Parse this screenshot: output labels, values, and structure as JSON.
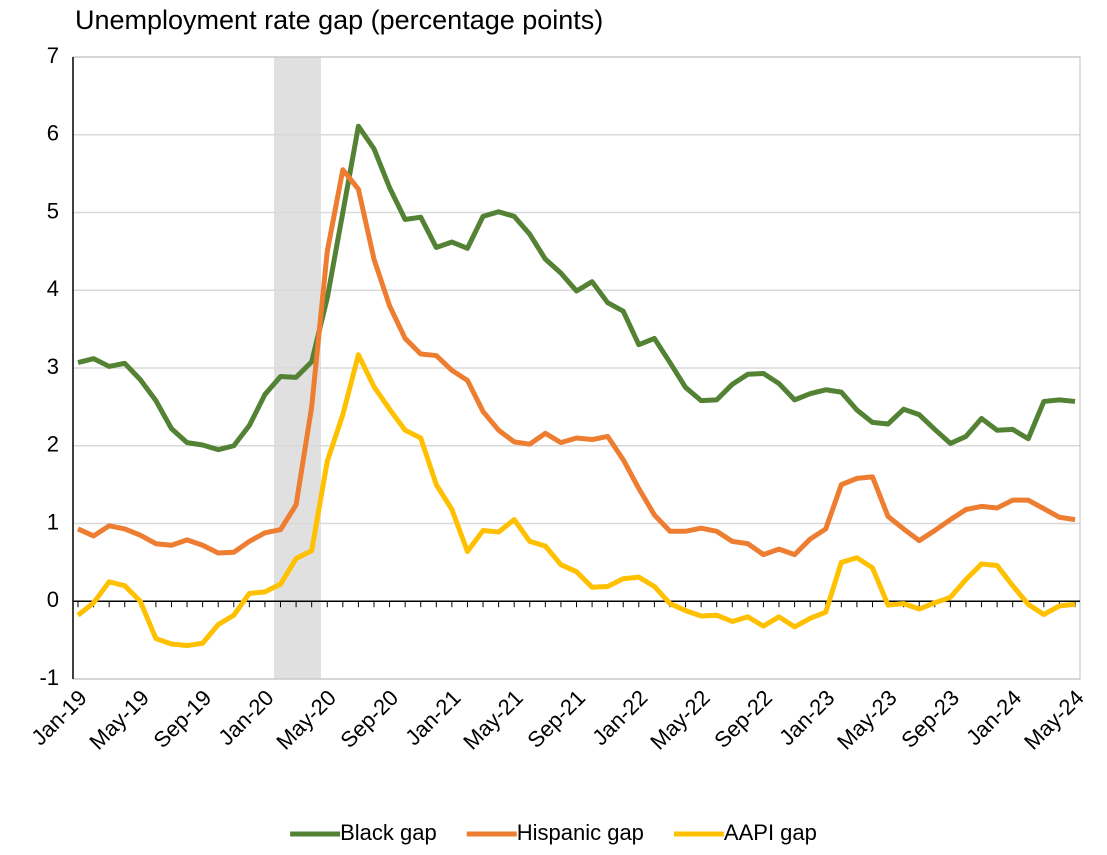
{
  "chart_data": {
    "type": "line",
    "title": "Unemployment rate gap (percentage points)",
    "categories": [
      "Jan-19",
      null,
      null,
      null,
      "May-19",
      null,
      null,
      null,
      "Sep-19",
      null,
      null,
      null,
      "Jan-20",
      null,
      null,
      null,
      "May-20",
      null,
      null,
      null,
      "Sep-20",
      null,
      null,
      null,
      "Jan-21",
      null,
      null,
      null,
      "May-21",
      null,
      null,
      null,
      "Sep-21",
      null,
      null,
      null,
      "Jan-22",
      null,
      null,
      null,
      "May-22",
      null,
      null,
      null,
      "Sep-22",
      null,
      null,
      null,
      "Jan-23",
      null,
      null,
      null,
      "May-23",
      null,
      null,
      null,
      "Sep-23",
      null,
      null,
      null,
      "Jan-24",
      null,
      null,
      null,
      "May-24"
    ],
    "series": [
      {
        "name": "Black gap",
        "color": "#548235",
        "values": [
          3.07,
          3.12,
          3.02,
          3.06,
          2.85,
          2.58,
          2.22,
          2.04,
          2.01,
          1.95,
          2.0,
          2.26,
          2.66,
          2.89,
          2.88,
          3.08,
          3.9,
          5.0,
          6.11,
          5.82,
          5.32,
          4.91,
          4.94,
          4.55,
          4.62,
          4.54,
          4.95,
          5.01,
          4.95,
          4.72,
          4.4,
          4.22,
          3.99,
          4.11,
          3.84,
          3.73,
          3.3,
          3.38,
          3.07,
          2.75,
          2.58,
          2.59,
          2.79,
          2.92,
          2.93,
          2.8,
          2.59,
          2.67,
          2.72,
          2.69,
          2.46,
          2.3,
          2.28,
          2.47,
          2.4,
          2.21,
          2.03,
          2.12,
          2.35,
          2.2,
          2.21,
          2.09,
          2.57,
          2.59,
          2.57
        ]
      },
      {
        "name": "Hispanic gap",
        "color": "#ed7d31",
        "values": [
          0.93,
          0.84,
          0.97,
          0.93,
          0.85,
          0.74,
          0.72,
          0.79,
          0.72,
          0.62,
          0.63,
          0.77,
          0.88,
          0.92,
          1.24,
          2.5,
          4.5,
          5.55,
          5.3,
          4.4,
          3.8,
          3.38,
          3.18,
          3.16,
          2.97,
          2.84,
          2.44,
          2.2,
          2.05,
          2.02,
          2.16,
          2.04,
          2.1,
          2.08,
          2.12,
          1.82,
          1.45,
          1.11,
          0.9,
          0.9,
          0.94,
          0.9,
          0.77,
          0.74,
          0.6,
          0.67,
          0.6,
          0.8,
          0.93,
          1.5,
          1.58,
          1.6,
          1.09,
          0.93,
          0.78,
          0.91,
          1.05,
          1.18,
          1.22,
          1.2,
          1.3,
          1.3,
          1.19,
          1.08,
          1.05
        ]
      },
      {
        "name": "AAPI gap",
        "color": "#ffc000",
        "values": [
          -0.18,
          -0.02,
          0.25,
          0.2,
          0.0,
          -0.48,
          -0.55,
          -0.57,
          -0.54,
          -0.3,
          -0.18,
          0.1,
          0.12,
          0.22,
          0.55,
          0.65,
          1.8,
          2.4,
          3.17,
          2.76,
          2.47,
          2.2,
          2.1,
          1.5,
          1.18,
          0.64,
          0.91,
          0.89,
          1.05,
          0.77,
          0.71,
          0.47,
          0.38,
          0.18,
          0.19,
          0.29,
          0.31,
          0.19,
          -0.03,
          -0.12,
          -0.19,
          -0.18,
          -0.26,
          -0.2,
          -0.32,
          -0.2,
          -0.33,
          -0.22,
          -0.14,
          0.5,
          0.56,
          0.43,
          -0.05,
          -0.03,
          -0.1,
          -0.02,
          0.05,
          0.28,
          0.48,
          0.46,
          0.2,
          -0.04,
          -0.17,
          -0.06,
          -0.04
        ]
      }
    ],
    "ylim": [
      -1,
      7
    ],
    "yticks": [
      -1,
      0,
      1,
      2,
      3,
      4,
      5,
      6,
      7
    ],
    "grid": true,
    "legend": "bottom"
  }
}
